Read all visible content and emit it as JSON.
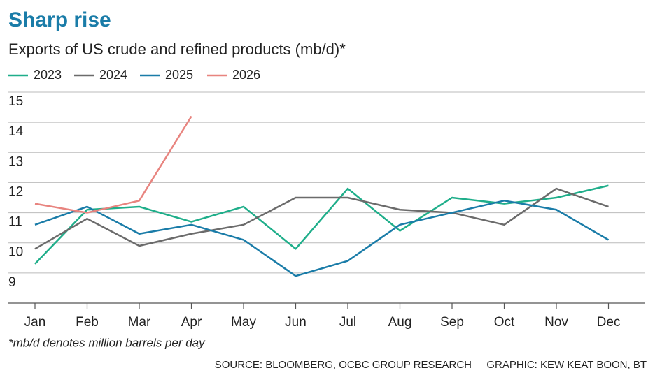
{
  "chart_data": {
    "type": "line",
    "title": "Sharp rise",
    "subtitle": "Exports of US crude and refined products (mb/d)*",
    "categories": [
      "Jan",
      "Feb",
      "Mar",
      "Apr",
      "May",
      "Jun",
      "Jul",
      "Aug",
      "Sep",
      "Oct",
      "Nov",
      "Dec"
    ],
    "series": [
      {
        "name": "2023",
        "color": "#1fae8a",
        "values": [
          9.3,
          11.1,
          11.2,
          10.7,
          11.2,
          9.8,
          11.8,
          10.4,
          11.5,
          11.3,
          11.5,
          11.9
        ]
      },
      {
        "name": "2024",
        "color": "#6b6b6b",
        "values": [
          9.8,
          10.8,
          9.9,
          10.3,
          10.6,
          11.5,
          11.5,
          11.1,
          11.0,
          10.6,
          11.8,
          11.2
        ]
      },
      {
        "name": "2025",
        "color": "#1a7ca8",
        "values": [
          10.6,
          11.2,
          10.3,
          10.6,
          10.1,
          8.9,
          9.4,
          10.6,
          11.0,
          11.4,
          11.1,
          10.1
        ]
      },
      {
        "name": "2026",
        "color": "#e8847f",
        "values": [
          11.3,
          11.0,
          11.4,
          14.2,
          null,
          null,
          null,
          null,
          null,
          null,
          null,
          null
        ]
      }
    ],
    "ylim": [
      8,
      15
    ],
    "yticks": [
      9,
      10,
      11,
      12,
      13,
      14,
      15
    ],
    "grid": true,
    "legend": "top-left",
    "note": "*mb/d denotes million barrels per day",
    "source": "SOURCE: BLOOMBERG, OCBC GROUP RESEARCH",
    "credit": "GRAPHIC: KEW KEAT BOON, BT"
  }
}
